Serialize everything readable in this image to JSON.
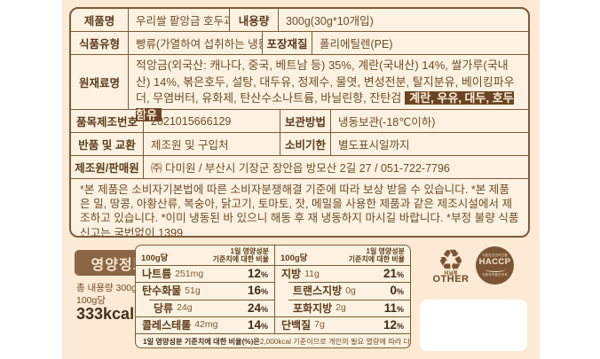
{
  "colors": {
    "background": "#fcead4",
    "table_bg": "#fdf2e1",
    "border_brown": "#7b5a38",
    "label_brown": "#5a3b1d",
    "text_brown": "#6d4c2a",
    "allergen_bg": "#6b4523",
    "nutrition_title_bg": "#8a6546"
  },
  "product_table": {
    "row1": {
      "label": "제품명",
      "value": "우리쌀 팥앙금 호두과자",
      "label2": "내용량",
      "value2": "300g(30g*10개입)"
    },
    "row2": {
      "label": "식품유형",
      "value": "빵류(가열하여 섭취하는 냉동식품)",
      "label2": "포장재질",
      "value2": "폴리에틸렌(PE)"
    },
    "ingredients": {
      "label": "원재료명",
      "text": "적앙금(외국산: 캐나다, 중국, 베트남 등) 35%, 계란(국내산) 14%, 쌀가루(국내산) 14%, 볶은호두, 설탕, 대두유, 정제수, 물엿, 변성전분, 탈지분유, 베이킹파우더, 무염버터, 유화제, 탄산수소나트륨, 바닐린향, 잔탄검",
      "allergen": "계란, 우유, 대두, 호두 함유"
    },
    "row4": {
      "label": "품목제조번호",
      "value": "2021015666129",
      "label2": "보관방법",
      "value2": "냉동보관(-18℃이하)"
    },
    "row5": {
      "label": "반품 및 교환",
      "value": "제조원 및 구입처",
      "label2": "소비기한",
      "value2": "별도표시일까지"
    },
    "row6": {
      "label": "제조원/판매원",
      "value": "㈜ 다미원 / 부산시 기장군 장안읍 방모산 2길 27 / 051-722-7796"
    },
    "notes": "*본 제품은 소비자기본법에 따른 소비자분쟁해결 기준에 따라 보상 받을 수 있습니다. *본 제품은 밀, 땅콩, 아황산류, 복숭아, 닭고기, 토마토, 잣, 메밀을 사용한 제품과 같은 제조시설에서 제조하고 있습니다. *이미 냉동된 바 있으니 해동 후 재 냉동하지 마시길 바랍니다. *부정 불량 식품 신고는 국번없이 1399"
  },
  "nutrition": {
    "title": "영양정보",
    "total_amount": "총 내용량 300g",
    "per_amount": "100g당",
    "kcal": "333kcal",
    "header_amount": "100g당",
    "header_pct_line1": "1일 영양성분",
    "header_pct_line2": "기준치에 대한 비율",
    "pct_unit": "%",
    "left_rows": [
      {
        "name": "나트륨",
        "amount": "251mg",
        "pct": "12"
      },
      {
        "name": "탄수화물",
        "amount": "51g",
        "pct": "16"
      },
      {
        "name": "당류",
        "amount": "24g",
        "pct": "24"
      },
      {
        "name": "콜레스테롤",
        "amount": "42mg",
        "pct": "14"
      }
    ],
    "right_rows": [
      {
        "name": "지방",
        "amount": "11g",
        "pct": "21"
      },
      {
        "name": "트랜스지방",
        "amount": "0g",
        "pct": "0"
      },
      {
        "name": "포화지방",
        "amount": "2g",
        "pct": "11"
      },
      {
        "name": "단백질",
        "amount": "7g",
        "pct": "12"
      }
    ],
    "footnote_bold": "1일 영양성분 기준치에 대한 비율(%)은",
    "footnote_rest": " 2,000kcal 기준이므로 개인의 필요 열량에 따라 다를 수 있습니다."
  },
  "certifications": {
    "recycle_material": "비닐류",
    "recycle_type": "OTHER",
    "haccp_top": "식품안전관리인증",
    "haccp_main": "HACCP",
    "haccp_bottom": "식품의약품안전처"
  }
}
